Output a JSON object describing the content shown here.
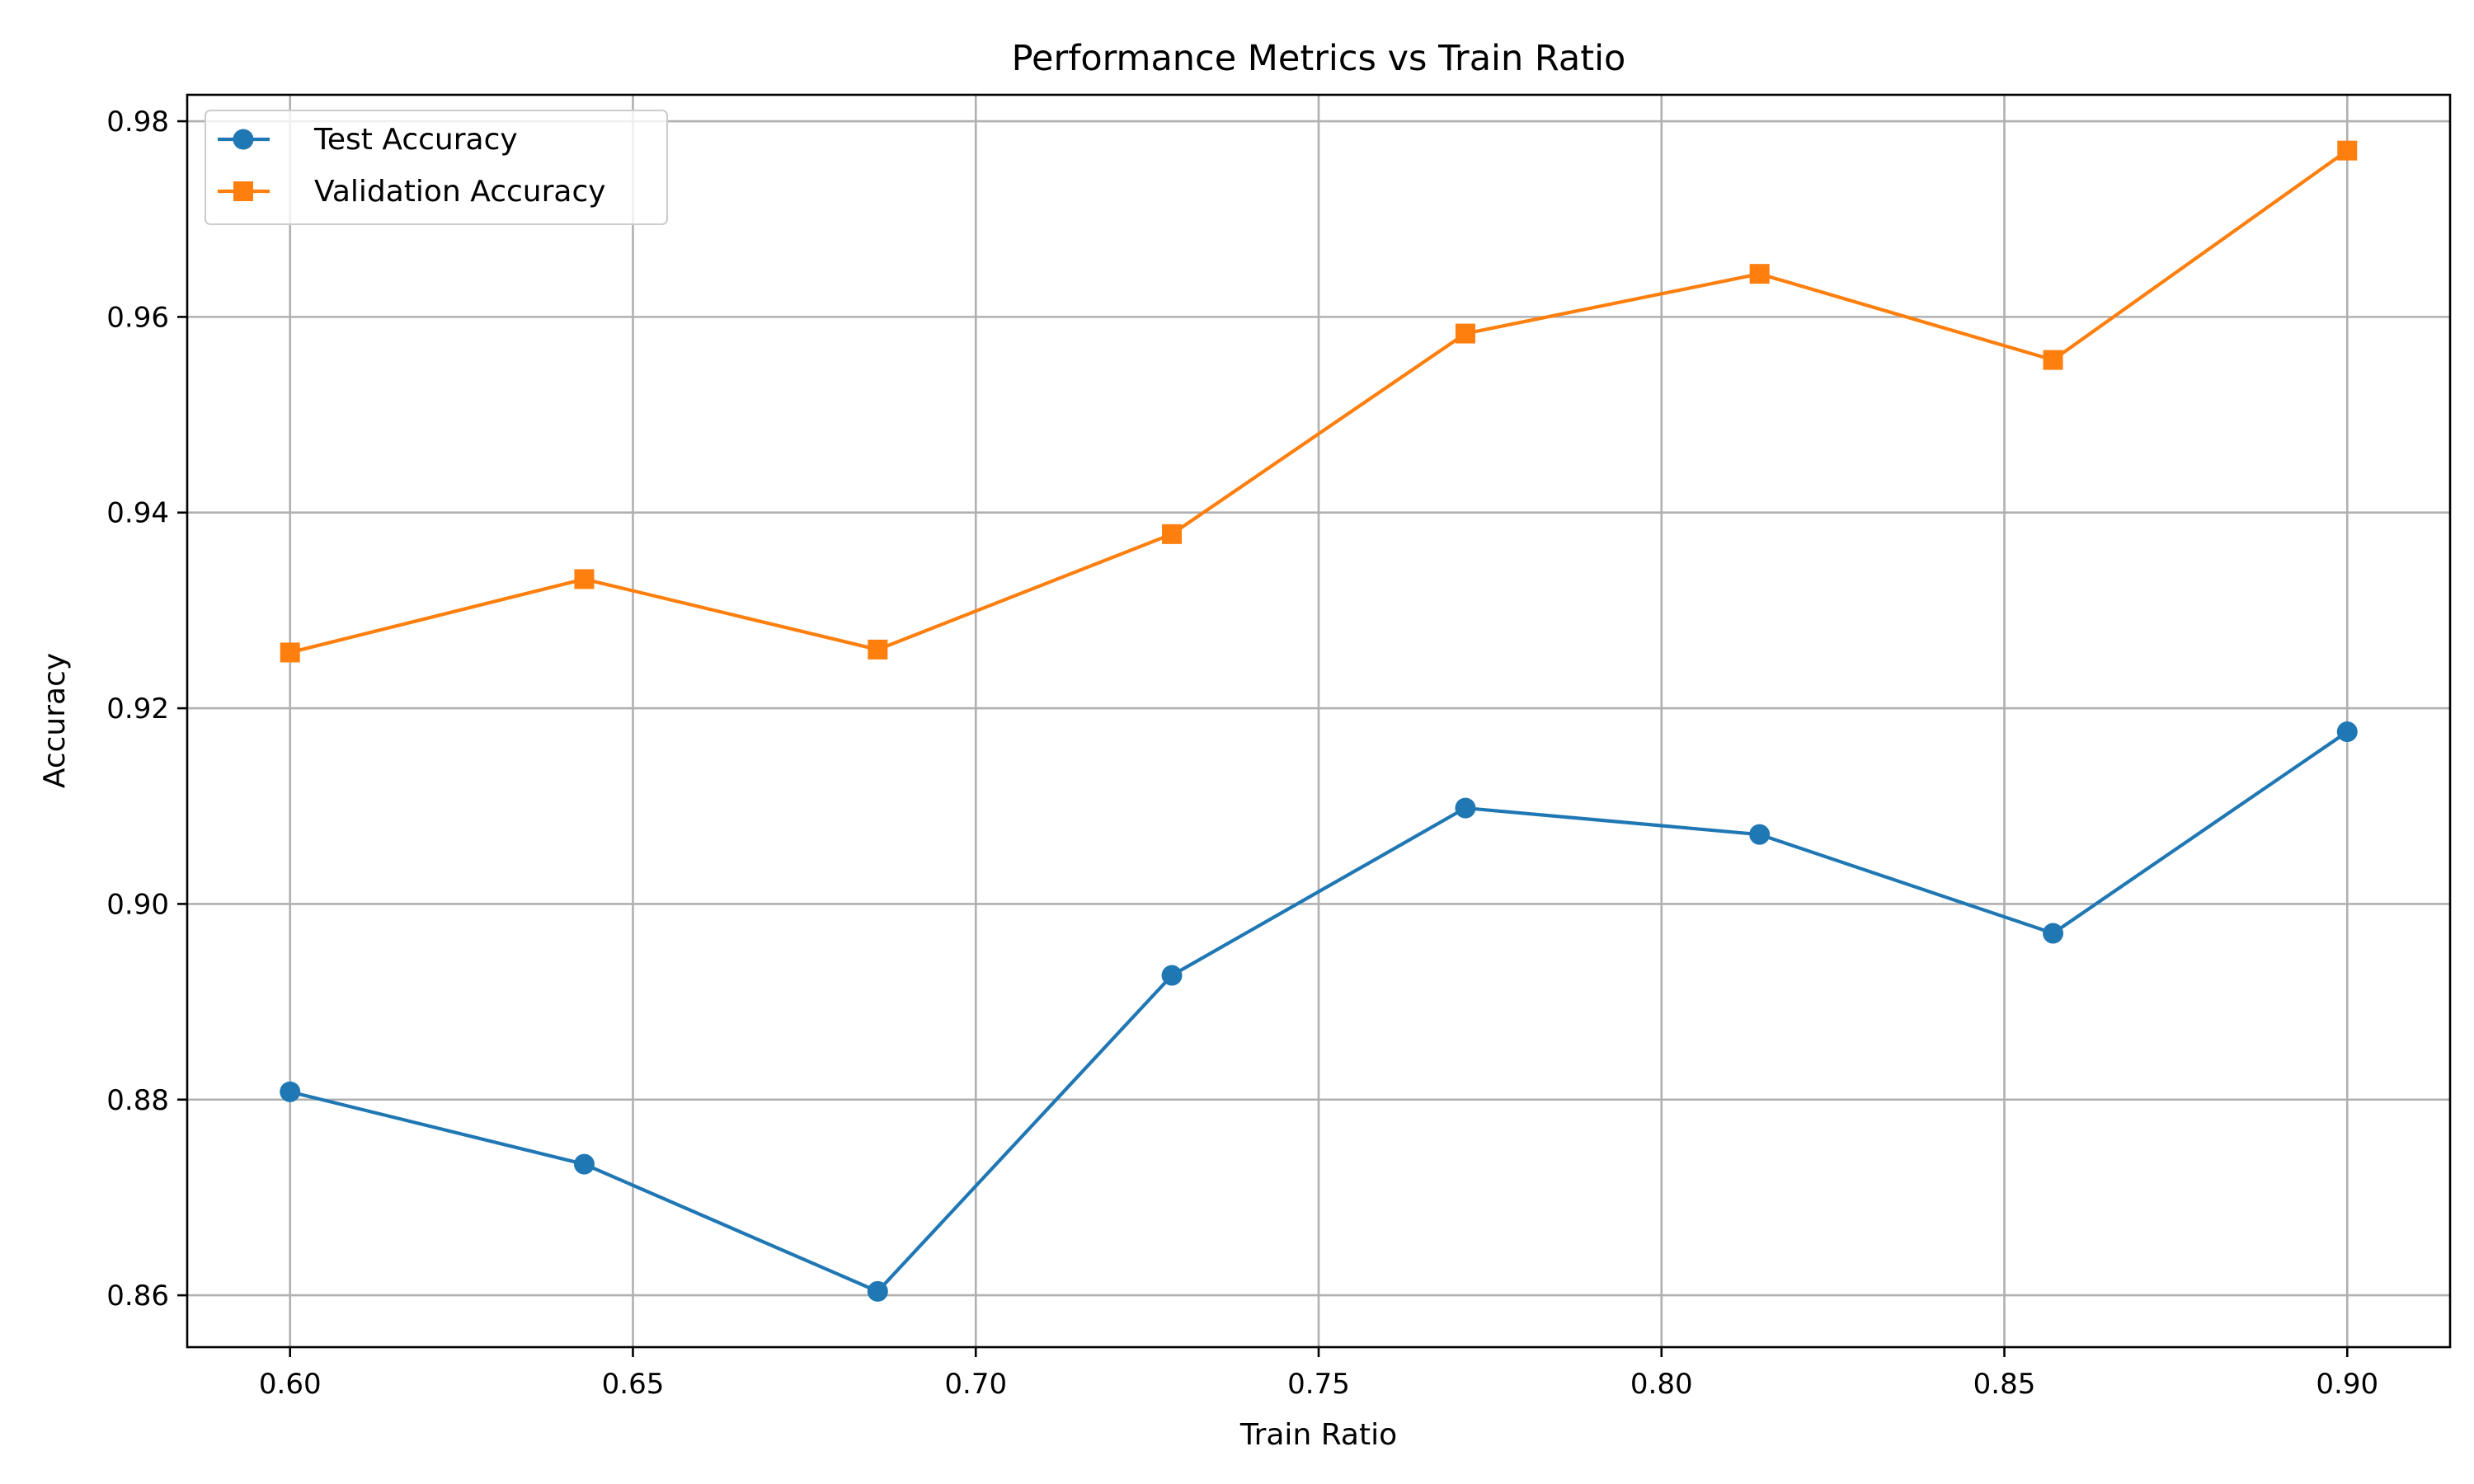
{
  "chart_data": {
    "type": "line",
    "title": "Performance Metrics vs Train Ratio",
    "xlabel": "Train Ratio",
    "ylabel": "Accuracy",
    "xlim": [
      0.585,
      0.915
    ],
    "ylim": [
      0.8547,
      0.9827
    ],
    "xticks": [
      0.6,
      0.65,
      0.7,
      0.75,
      0.8,
      0.85,
      0.9
    ],
    "xtick_labels": [
      "0.60",
      "0.65",
      "0.70",
      "0.75",
      "0.80",
      "0.85",
      "0.90"
    ],
    "yticks": [
      0.86,
      0.88,
      0.9,
      0.92,
      0.94,
      0.96,
      0.98
    ],
    "ytick_labels": [
      "0.86",
      "0.88",
      "0.90",
      "0.92",
      "0.94",
      "0.96",
      "0.98"
    ],
    "grid": true,
    "legend_position": "top-left",
    "x": [
      0.6,
      0.6429,
      0.6857,
      0.7286,
      0.7714,
      0.8143,
      0.8571,
      0.9
    ],
    "series": [
      {
        "name": "Test Accuracy",
        "color": "#1f77b4",
        "marker": "circle",
        "values": [
          0.8808,
          0.8734,
          0.8604,
          0.8927,
          0.9098,
          0.9071,
          0.897,
          0.9176
        ]
      },
      {
        "name": "Validation Accuracy",
        "color": "#ff7f0e",
        "marker": "square",
        "values": [
          0.9257,
          0.9332,
          0.926,
          0.9378,
          0.9583,
          0.9644,
          0.9556,
          0.977
        ]
      }
    ]
  }
}
